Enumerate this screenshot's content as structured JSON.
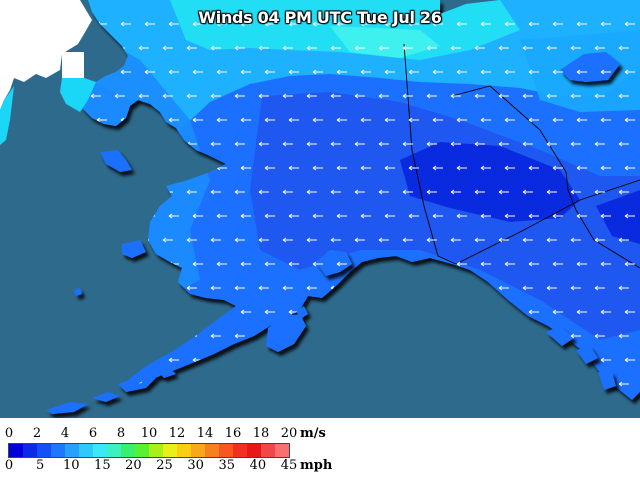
{
  "map": {
    "title": "Winds 04 PM UTC Tue Jul 26",
    "colors": {
      "ocean": "#2e6a8c",
      "russia_land": "#ffffff",
      "wind_light": "#1ee6f0",
      "wind_mid": "#1fbaff",
      "wind_strong": "#1a6fff",
      "wind_calm": "#1f58f0",
      "wind_min": "#0a2ae0",
      "coast_shadow": "#111111",
      "borders": "#000000"
    }
  },
  "legend": {
    "ms_ticks": [
      "0",
      "2",
      "4",
      "6",
      "8",
      "10",
      "12",
      "14",
      "16",
      "18",
      "20"
    ],
    "ms_unit": "m/s",
    "mph_ticks": [
      "0",
      "5",
      "10",
      "15",
      "20",
      "25",
      "30",
      "35",
      "40",
      "45"
    ],
    "mph_unit": "mph",
    "swatch_colors": [
      "#0000d8",
      "#0a2ae8",
      "#1650f5",
      "#1e78ff",
      "#28a0ff",
      "#30c8ff",
      "#3ae8f8",
      "#3cf0c0",
      "#38f070",
      "#58f030",
      "#a8f018",
      "#e8f018",
      "#f8d010",
      "#f8a818",
      "#f88020",
      "#f85820",
      "#f03020",
      "#e81818",
      "#f04848",
      "#f87070"
    ]
  }
}
